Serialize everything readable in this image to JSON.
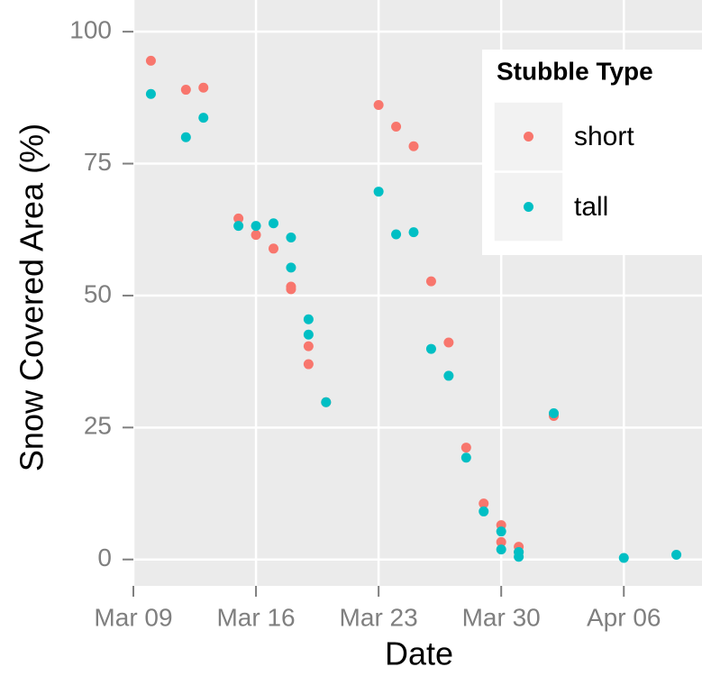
{
  "chart_data": {
    "type": "scatter",
    "x_label": "Date",
    "y_label": "Snow Covered Area (%)",
    "legend_title": "Stubble Type",
    "legend": "top-right",
    "grid": true,
    "xlim": [
      "Mar 09",
      "Apr 10"
    ],
    "xticks": [
      "Mar 09",
      "Mar 16",
      "Mar 23",
      "Mar 30",
      "Apr 06"
    ],
    "ylim": [
      -5,
      106
    ],
    "yticks": [
      0,
      25,
      50,
      75,
      100
    ],
    "series": [
      {
        "name": "short",
        "color": "#F8766D",
        "x": [
          "Mar 10",
          "Mar 12",
          "Mar 13",
          "Mar 15",
          "Mar 16",
          "Mar 17",
          "Mar 18",
          "Mar 18",
          "Mar 19",
          "Mar 19",
          "Mar 20",
          "Mar 23",
          "Mar 24",
          "Mar 25",
          "Mar 26",
          "Mar 27",
          "Mar 28",
          "Mar 29",
          "Mar 30",
          "Mar 30",
          "Mar 31",
          "Mar 31",
          "Apr 02"
        ],
        "values": [
          94.5,
          89.0,
          89.4,
          64.6,
          61.5,
          58.9,
          51.7,
          51.2,
          40.4,
          37.0,
          29.8,
          86.1,
          82.0,
          78.3,
          52.7,
          41.1,
          21.2,
          10.6,
          6.5,
          3.3,
          2.4,
          1.4,
          27.2
        ]
      },
      {
        "name": "tall",
        "color": "#00BFC4",
        "x": [
          "Mar 10",
          "Mar 12",
          "Mar 13",
          "Mar 15",
          "Mar 16",
          "Mar 17",
          "Mar 18",
          "Mar 18",
          "Mar 19",
          "Mar 19",
          "Mar 20",
          "Mar 23",
          "Mar 24",
          "Mar 25",
          "Mar 26",
          "Mar 27",
          "Mar 28",
          "Mar 29",
          "Mar 30",
          "Mar 30",
          "Mar 31",
          "Mar 31",
          "Apr 02",
          "Apr 06",
          "Apr 09"
        ],
        "values": [
          88.2,
          80.0,
          83.7,
          63.2,
          63.2,
          63.7,
          55.3,
          61.0,
          45.5,
          42.6,
          29.8,
          69.7,
          61.6,
          62.0,
          39.9,
          34.8,
          19.3,
          9.1,
          5.3,
          1.9,
          1.4,
          0.5,
          27.7,
          0.3,
          0.9
        ]
      }
    ]
  }
}
